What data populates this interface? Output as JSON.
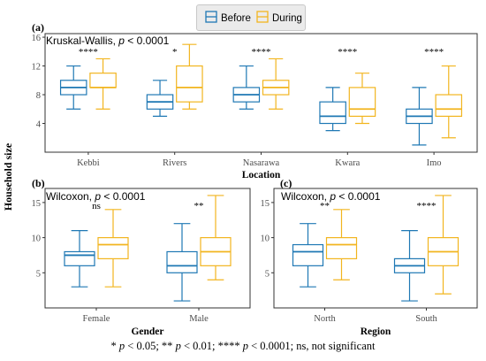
{
  "legend": {
    "items": [
      {
        "label": "Before",
        "color": "#1f78b4"
      },
      {
        "label": "During",
        "color": "#f2b51f"
      }
    ]
  },
  "y_axis_label": "Household size",
  "footnote": {
    "sym1": "* ",
    "p1": "p",
    "t1": " < 0.05; ** ",
    "p2": "p",
    "t2": " < 0.01; **** ",
    "p3": "p",
    "t3": " < 0.0001; ns, not significant"
  },
  "chart_data": [
    {
      "panel": "(a)",
      "type": "boxplot",
      "test": "Kruskal-Wallis,",
      "test_p": "p",
      "test_value": " < 0.0001",
      "xlabel": "Location",
      "ylim": [
        0,
        16.5
      ],
      "yticks": [
        4,
        8,
        12,
        16
      ],
      "categories": [
        "Kebbi",
        "Rivers",
        "Nasarawa",
        "Kwara",
        "Imo"
      ],
      "significance": [
        "****",
        "*",
        "****",
        "****",
        "****"
      ],
      "series": [
        {
          "name": "Before",
          "boxes": [
            [
              6,
              8,
              9,
              10,
              12
            ],
            [
              5,
              6,
              7,
              8,
              10
            ],
            [
              6,
              7,
              8,
              9,
              12
            ],
            [
              3,
              4,
              5,
              7,
              9
            ],
            [
              1,
              4,
              5,
              6,
              9
            ]
          ]
        },
        {
          "name": "During",
          "boxes": [
            [
              6,
              9,
              9,
              11,
              13
            ],
            [
              6,
              7,
              9,
              12,
              15
            ],
            [
              6,
              8,
              9,
              10,
              13
            ],
            [
              4,
              5,
              6,
              9,
              11
            ],
            [
              2,
              5,
              6,
              8,
              12
            ]
          ]
        }
      ]
    },
    {
      "panel": "(b)",
      "type": "boxplot",
      "test": "Wilcoxon,",
      "test_p": "p",
      "test_value": " < 0.0001",
      "xlabel": "Gender",
      "ylim": [
        0,
        17
      ],
      "yticks": [
        5,
        10,
        15
      ],
      "categories": [
        "Female",
        "Male"
      ],
      "significance": [
        "ns",
        "**"
      ],
      "series": [
        {
          "name": "Before",
          "boxes": [
            [
              3,
              6,
              7.5,
              8,
              11
            ],
            [
              1,
              5,
              6,
              8,
              12
            ]
          ]
        },
        {
          "name": "During",
          "boxes": [
            [
              3,
              7,
              9,
              10,
              14
            ],
            [
              4,
              6,
              8,
              10,
              16
            ]
          ]
        }
      ]
    },
    {
      "panel": "(c)",
      "type": "boxplot",
      "test": "Wilcoxon,",
      "test_p": "p",
      "test_value": " < 0.0001",
      "xlabel": "Region",
      "ylim": [
        0,
        17
      ],
      "yticks": [
        5,
        10,
        15
      ],
      "categories": [
        "North",
        "South"
      ],
      "significance": [
        "**",
        "****"
      ],
      "series": [
        {
          "name": "Before",
          "boxes": [
            [
              3,
              6,
              8,
              9,
              12
            ],
            [
              1,
              5,
              6,
              7,
              11
            ]
          ]
        },
        {
          "name": "During",
          "boxes": [
            [
              4,
              7,
              9,
              10,
              14
            ],
            [
              2,
              6,
              8,
              10,
              16
            ]
          ]
        }
      ]
    }
  ]
}
